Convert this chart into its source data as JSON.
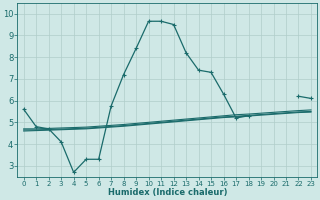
{
  "xlabel": "Humidex (Indice chaleur)",
  "ylabel": "",
  "xlim": [
    -0.5,
    23.5
  ],
  "ylim": [
    2.5,
    10.5
  ],
  "xticks": [
    0,
    1,
    2,
    3,
    4,
    5,
    6,
    7,
    8,
    9,
    10,
    11,
    12,
    13,
    14,
    15,
    16,
    17,
    18,
    19,
    20,
    21,
    22,
    23
  ],
  "yticks": [
    3,
    4,
    5,
    6,
    7,
    8,
    9,
    10
  ],
  "bg_color": "#cfe8e6",
  "grid_color": "#b0ceca",
  "line_color": "#1a6b6b",
  "line1_x": [
    0,
    1,
    2,
    3,
    4,
    5,
    6,
    7,
    8,
    9,
    10,
    11,
    12,
    13,
    14,
    15,
    16,
    17,
    18,
    19,
    20,
    21,
    22,
    23
  ],
  "line1_y": [
    5.6,
    4.8,
    4.7,
    4.1,
    2.7,
    3.3,
    3.3,
    5.75,
    7.2,
    8.4,
    9.65,
    9.65,
    9.5,
    8.2,
    7.4,
    7.3,
    6.3,
    5.2,
    5.3,
    null,
    null,
    null,
    6.2,
    6.1
  ],
  "line2_x": [
    0,
    1,
    2,
    3,
    4,
    5,
    6,
    7,
    8,
    9,
    10,
    11,
    12,
    13,
    14,
    15,
    16,
    17,
    18,
    19,
    20,
    21,
    22,
    23
  ],
  "line2_y": [
    4.7,
    4.7,
    4.72,
    4.74,
    4.76,
    4.78,
    4.82,
    4.86,
    4.9,
    4.95,
    5.0,
    5.05,
    5.1,
    5.15,
    5.2,
    5.25,
    5.3,
    5.35,
    5.38,
    5.42,
    5.46,
    5.5,
    5.54,
    5.57
  ],
  "line3_x": [
    0,
    1,
    2,
    3,
    4,
    5,
    6,
    7,
    8,
    9,
    10,
    11,
    12,
    13,
    14,
    15,
    16,
    17,
    18,
    19,
    20,
    21,
    22,
    23
  ],
  "line3_y": [
    4.65,
    4.65,
    4.67,
    4.69,
    4.71,
    4.73,
    4.77,
    4.81,
    4.85,
    4.9,
    4.95,
    5.0,
    5.05,
    5.1,
    5.15,
    5.2,
    5.25,
    5.28,
    5.32,
    5.36,
    5.4,
    5.44,
    5.48,
    5.5
  ],
  "line4_x": [
    0,
    1,
    2,
    3,
    4,
    5,
    6,
    7,
    8,
    9,
    10,
    11,
    12,
    13,
    14,
    15,
    16,
    17,
    18,
    19,
    20,
    21,
    22,
    23
  ],
  "line4_y": [
    4.6,
    4.62,
    4.64,
    4.66,
    4.68,
    4.7,
    4.74,
    4.78,
    4.82,
    4.87,
    4.92,
    4.97,
    5.02,
    5.07,
    5.12,
    5.17,
    5.22,
    5.25,
    5.29,
    5.33,
    5.37,
    5.41,
    5.45,
    5.47
  ]
}
